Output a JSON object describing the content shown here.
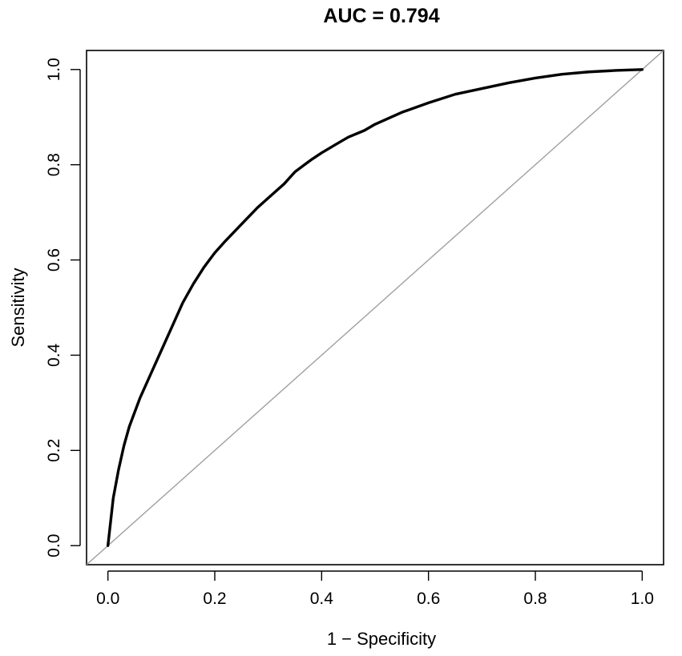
{
  "chart_data": {
    "type": "line",
    "title": "AUC = 0.794",
    "xlabel": "1 − Specificity",
    "ylabel": "Sensitivity",
    "xlim": [
      -0.04,
      1.04
    ],
    "ylim": [
      -0.04,
      1.04
    ],
    "grid": false,
    "x_ticks": [
      "0.0",
      "0.2",
      "0.4",
      "0.6",
      "0.8",
      "1.0"
    ],
    "y_ticks": [
      "0.0",
      "0.2",
      "0.4",
      "0.6",
      "0.8",
      "1.0"
    ],
    "series": [
      {
        "color": "#000000",
        "x": [
          0,
          0.005,
          0.01,
          0.02,
          0.03,
          0.04,
          0.05,
          0.06,
          0.08,
          0.1,
          0.12,
          0.14,
          0.16,
          0.18,
          0.2,
          0.22,
          0.25,
          0.28,
          0.3,
          0.33,
          0.35,
          0.38,
          0.4,
          0.43,
          0.45,
          0.48,
          0.5,
          0.55,
          0.6,
          0.65,
          0.7,
          0.75,
          0.8,
          0.85,
          0.9,
          0.95,
          1.0
        ],
        "y": [
          0,
          0.05,
          0.1,
          0.16,
          0.21,
          0.25,
          0.28,
          0.31,
          0.36,
          0.41,
          0.46,
          0.51,
          0.55,
          0.585,
          0.615,
          0.64,
          0.675,
          0.71,
          0.73,
          0.76,
          0.785,
          0.81,
          0.825,
          0.845,
          0.858,
          0.872,
          0.885,
          0.91,
          0.93,
          0.948,
          0.96,
          0.972,
          0.982,
          0.99,
          0.995,
          0.998,
          1.0
        ]
      }
    ],
    "reference_line": {
      "x": [
        -0.04,
        1.04
      ],
      "y": [
        -0.04,
        1.04
      ],
      "color": "#a0a0a0"
    }
  }
}
